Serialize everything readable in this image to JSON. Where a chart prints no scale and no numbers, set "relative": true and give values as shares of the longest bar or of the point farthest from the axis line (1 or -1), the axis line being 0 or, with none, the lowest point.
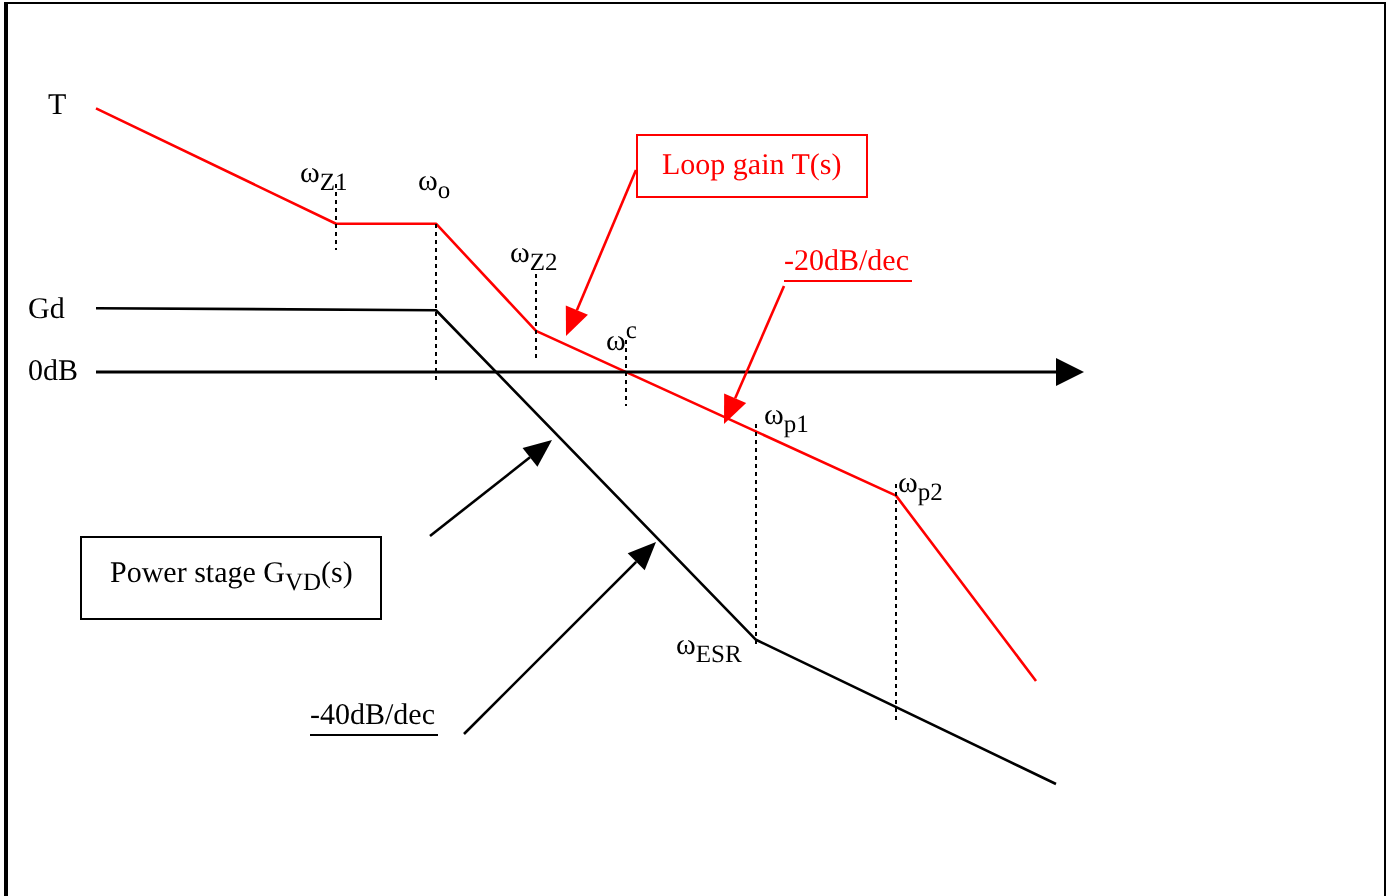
{
  "chart_data": {
    "type": "line",
    "relative": true,
    "legend": false,
    "grid": false,
    "marker": "none",
    "line_style": "solid",
    "categories": [
      null,
      null,
      null,
      null,
      null,
      null,
      null,
      null,
      null,
      null,
      null,
      null,
      null,
      null,
      null,
      null,
      null,
      null,
      null,
      null,
      null,
      null,
      null,
      null,
      null,
      null,
      null,
      null,
      null,
      null,
      null,
      null,
      null,
      null,
      null,
      null,
      null,
      null,
      null,
      null,
      null,
      null,
      null,
      null,
      null,
      null,
      null,
      null,
      null
    ],
    "series": [
      {
        "name": "T",
        "color": "#ff0000",
        "values": [
          0.64,
          null,
          null,
          null,
          null,
          null,
          null,
          null,
          null,
          null,
          null,
          null,
          0.36,
          null,
          null,
          null,
          null,
          0.36,
          null,
          null,
          null,
          null,
          0.1,
          null,
          null,
          null,
          null,
          null,
          null,
          null,
          null,
          null,
          null,
          null,
          null,
          null,
          null,
          null,
          null,
          null,
          -0.3,
          null,
          null,
          null,
          null,
          null,
          null,
          -0.75,
          null
        ]
      },
      {
        "name": "Gd",
        "color": "#000000",
        "values": [
          0.155,
          null,
          null,
          null,
          null,
          null,
          null,
          null,
          null,
          null,
          null,
          null,
          null,
          null,
          null,
          null,
          null,
          0.15,
          null,
          null,
          null,
          null,
          null,
          null,
          null,
          null,
          null,
          null,
          null,
          null,
          null,
          null,
          null,
          -0.65,
          null,
          null,
          null,
          null,
          null,
          null,
          null,
          null,
          null,
          null,
          null,
          null,
          null,
          null,
          -1
        ]
      }
    ],
    "annotations": [
      "0dB",
      "ω$_{Z1}$",
      "ω$_{o}$",
      "ω$_{Z2}$",
      "ω$^{c}$",
      "ω$_{p1}$",
      "ω$_{p2}$",
      "ω$_{ESR}$",
      "Loop gain T(s)",
      "-20dB/dec",
      "Power stage G$_{VD}$(s)",
      "-40dB/dec"
    ]
  }
}
